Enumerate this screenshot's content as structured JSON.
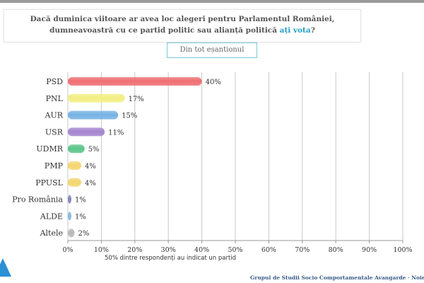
{
  "question": {
    "text_main": "Dacă duminica viitoare ar avea loc alegeri pentru Parlamentul României, dumneavoastră cu ce partid politic sau alianță politică ",
    "text_highlight": "ați vota",
    "text_end": "?"
  },
  "sample_button": "Din tot eșantionul",
  "note": "50% dintre respondenți au indicat un partid",
  "footer": "Grupul de Studii Socio Comportamentale Avangarde   ·  Noiembrie",
  "chart_data": {
    "type": "bar",
    "orientation": "horizontal",
    "categories": [
      "PSD",
      "PNL",
      "AUR",
      "USR",
      "UDMR",
      "PMP",
      "PPUSL",
      "Pro România",
      "ALDE",
      "Altele"
    ],
    "values": [
      40,
      17,
      15,
      11,
      5,
      4,
      4,
      1,
      1,
      2
    ],
    "value_labels": [
      "40%",
      "17%",
      "15%",
      "11%",
      "5%",
      "4%",
      "4%",
      "1%",
      "1%",
      "2%"
    ],
    "colors": [
      "#ee6e72",
      "#f2ee82",
      "#76b2e4",
      "#a584cf",
      "#5cc58a",
      "#f3d56f",
      "#f3d56f",
      "#7f86b8",
      "#86b8e0",
      "#b8b8b8"
    ],
    "xlim": [
      0,
      100
    ],
    "x_ticks": [
      "0%",
      "10%",
      "20%",
      "30%",
      "40%",
      "50%",
      "60%",
      "70%",
      "80%",
      "90%",
      "100%"
    ],
    "grid": true
  }
}
